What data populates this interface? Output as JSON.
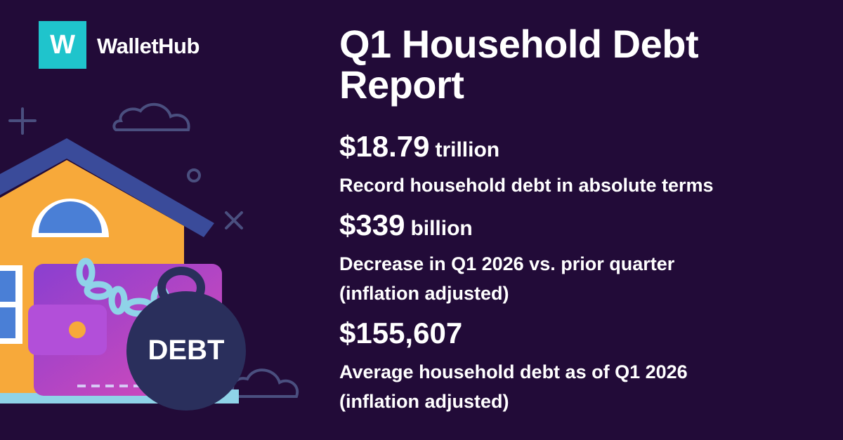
{
  "logo": {
    "mark": "W",
    "name": "WalletHub"
  },
  "title": "Q1 Household Debt Report",
  "illustration": {
    "ball_label": "DEBT"
  },
  "stats": [
    {
      "value": "$18.79",
      "unit": "trillion",
      "description": [
        "Record household debt in absolute terms"
      ]
    },
    {
      "value": "$339",
      "unit": "billion",
      "description": [
        "Decrease in Q1 2026 vs. prior quarter",
        "(inflation adjusted)"
      ]
    },
    {
      "value": "$155,607",
      "description": [
        "Average household debt as of Q1 2026",
        "(inflation adjusted)"
      ]
    }
  ]
}
